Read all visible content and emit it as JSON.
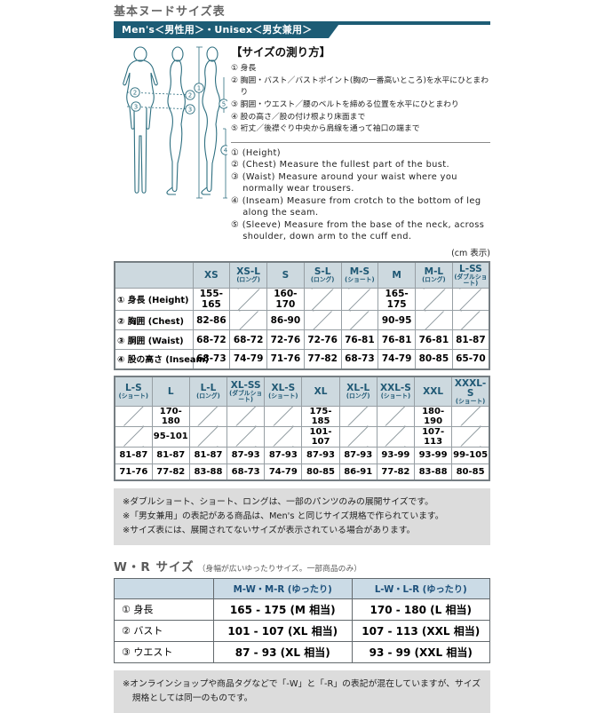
{
  "page": {
    "title": "基本ヌードサイズ表",
    "banner": "Men's＜男性用＞・Unisex＜男女兼用＞",
    "cm_note": "(cm 表示)"
  },
  "colors": {
    "accent_teal": "#1d5c75",
    "table_header_bg": "#cdd9df",
    "table_header_text": "#1f5874",
    "wr_header_bg": "#cbdbe6",
    "note_bg": "#dcdcdc",
    "diagram_stroke": "#2e6f80"
  },
  "measure_guide": {
    "heading": "【サイズの測り方】",
    "items_jp": [
      "① 身長",
      "② 胸囲・バスト／バストポイント(胸の一番高いところ)を水平にひとまわり",
      "③ 胴囲・ウエスト／腰のベルトを締める位置を水平にひとまわり",
      "④ 股の高さ／股の付け根より床面まで",
      "⑤ 裄丈／後襟ぐり中央から肩線を通って袖口の端まで"
    ],
    "items_en": [
      "① (Height)",
      "② (Chest) Measure the fullest part of the bust.",
      "③ (Waist) Measure around your waist where you normally wear trousers.",
      "④ (Inseam) Measure from crotch to the bottom of leg along the seam.",
      "⑤ (Sleeve) Measure from the base of the neck, across shoulder, down arm to the cuff end."
    ],
    "diagram_callouts": [
      "①",
      "②",
      "③",
      "④",
      "⑤"
    ]
  },
  "size_table_1": {
    "columns": [
      {
        "label": "XS",
        "sub": ""
      },
      {
        "label": "XS-L",
        "sub": "(ロング)"
      },
      {
        "label": "S",
        "sub": ""
      },
      {
        "label": "S-L",
        "sub": "(ロング)"
      },
      {
        "label": "M-S",
        "sub": "(ショート)"
      },
      {
        "label": "M",
        "sub": ""
      },
      {
        "label": "M-L",
        "sub": "(ロング)"
      },
      {
        "label": "L-SS",
        "sub": "(ダブルショート)"
      }
    ],
    "rows": [
      {
        "label": "① 身長 (Height)",
        "values": [
          "155-165",
          null,
          "160-170",
          null,
          null,
          "165-175",
          null,
          null
        ]
      },
      {
        "label": "② 胸囲 (Chest)",
        "values": [
          "82-86",
          null,
          "86-90",
          null,
          null,
          "90-95",
          null,
          null
        ]
      },
      {
        "label": "③ 胴囲 (Waist)",
        "values": [
          "68-72",
          "68-72",
          "72-76",
          "72-76",
          "76-81",
          "76-81",
          "76-81",
          "81-87"
        ]
      },
      {
        "label": "④ 股の高さ (Inseam)",
        "values": [
          "68-73",
          "74-79",
          "71-76",
          "77-82",
          "68-73",
          "74-79",
          "80-85",
          "65-70"
        ]
      }
    ]
  },
  "size_table_2": {
    "columns": [
      {
        "label": "L-S",
        "sub": "(ショート)"
      },
      {
        "label": "L",
        "sub": ""
      },
      {
        "label": "L-L",
        "sub": "(ロング)"
      },
      {
        "label": "XL-SS",
        "sub": "(ダブルショート)"
      },
      {
        "label": "XL-S",
        "sub": "(ショート)"
      },
      {
        "label": "XL",
        "sub": ""
      },
      {
        "label": "XL-L",
        "sub": "(ロング)"
      },
      {
        "label": "XXL-S",
        "sub": "(ショート)"
      },
      {
        "label": "XXL",
        "sub": ""
      },
      {
        "label": "XXXL-S",
        "sub": "(ショート)"
      }
    ],
    "rows": [
      {
        "values": [
          null,
          "170-180",
          null,
          null,
          null,
          "175-185",
          null,
          null,
          "180-190",
          null
        ]
      },
      {
        "values": [
          null,
          "95-101",
          null,
          null,
          null,
          "101-107",
          null,
          null,
          "107-113",
          null
        ]
      },
      {
        "values": [
          "81-87",
          "81-87",
          "81-87",
          "87-93",
          "87-93",
          "87-93",
          "87-93",
          "93-99",
          "93-99",
          "99-105"
        ]
      },
      {
        "values": [
          "71-76",
          "77-82",
          "83-88",
          "68-73",
          "74-79",
          "80-85",
          "86-91",
          "77-82",
          "83-88",
          "80-85"
        ]
      }
    ]
  },
  "notes_main": [
    "※ダブルショート、ショート、ロングは、一部のパンツのみの展開サイズです。",
    "※「男女兼用」の表記がある商品は、Men's と同じサイズ規格で作られています。",
    "※サイズ表には、展開されてないサイズが表示されている場合があります。"
  ],
  "wr_section": {
    "title": "W・R サイズ",
    "subtitle": "（身幅が広いゆったりサイズ。一部商品のみ）",
    "columns": [
      "M-W・M-R (ゆったり)",
      "L-W・L-R (ゆったり)"
    ],
    "rows": [
      {
        "label": "① 身長",
        "values": [
          "165 - 175 (M 相当)",
          "170 - 180 (L 相当)"
        ]
      },
      {
        "label": "② バスト",
        "values": [
          "101 - 107 (XL 相当)",
          "107 - 113 (XXL 相当)"
        ]
      },
      {
        "label": "③ ウエスト",
        "values": [
          "87 - 93 (XL 相当)",
          "93 - 99 (XXL 相当)"
        ]
      }
    ],
    "note": "※オンラインショップや商品タグなどで「-W」と「-R」の表記が混在していますが、サイズ規格としては同一のものです。"
  }
}
